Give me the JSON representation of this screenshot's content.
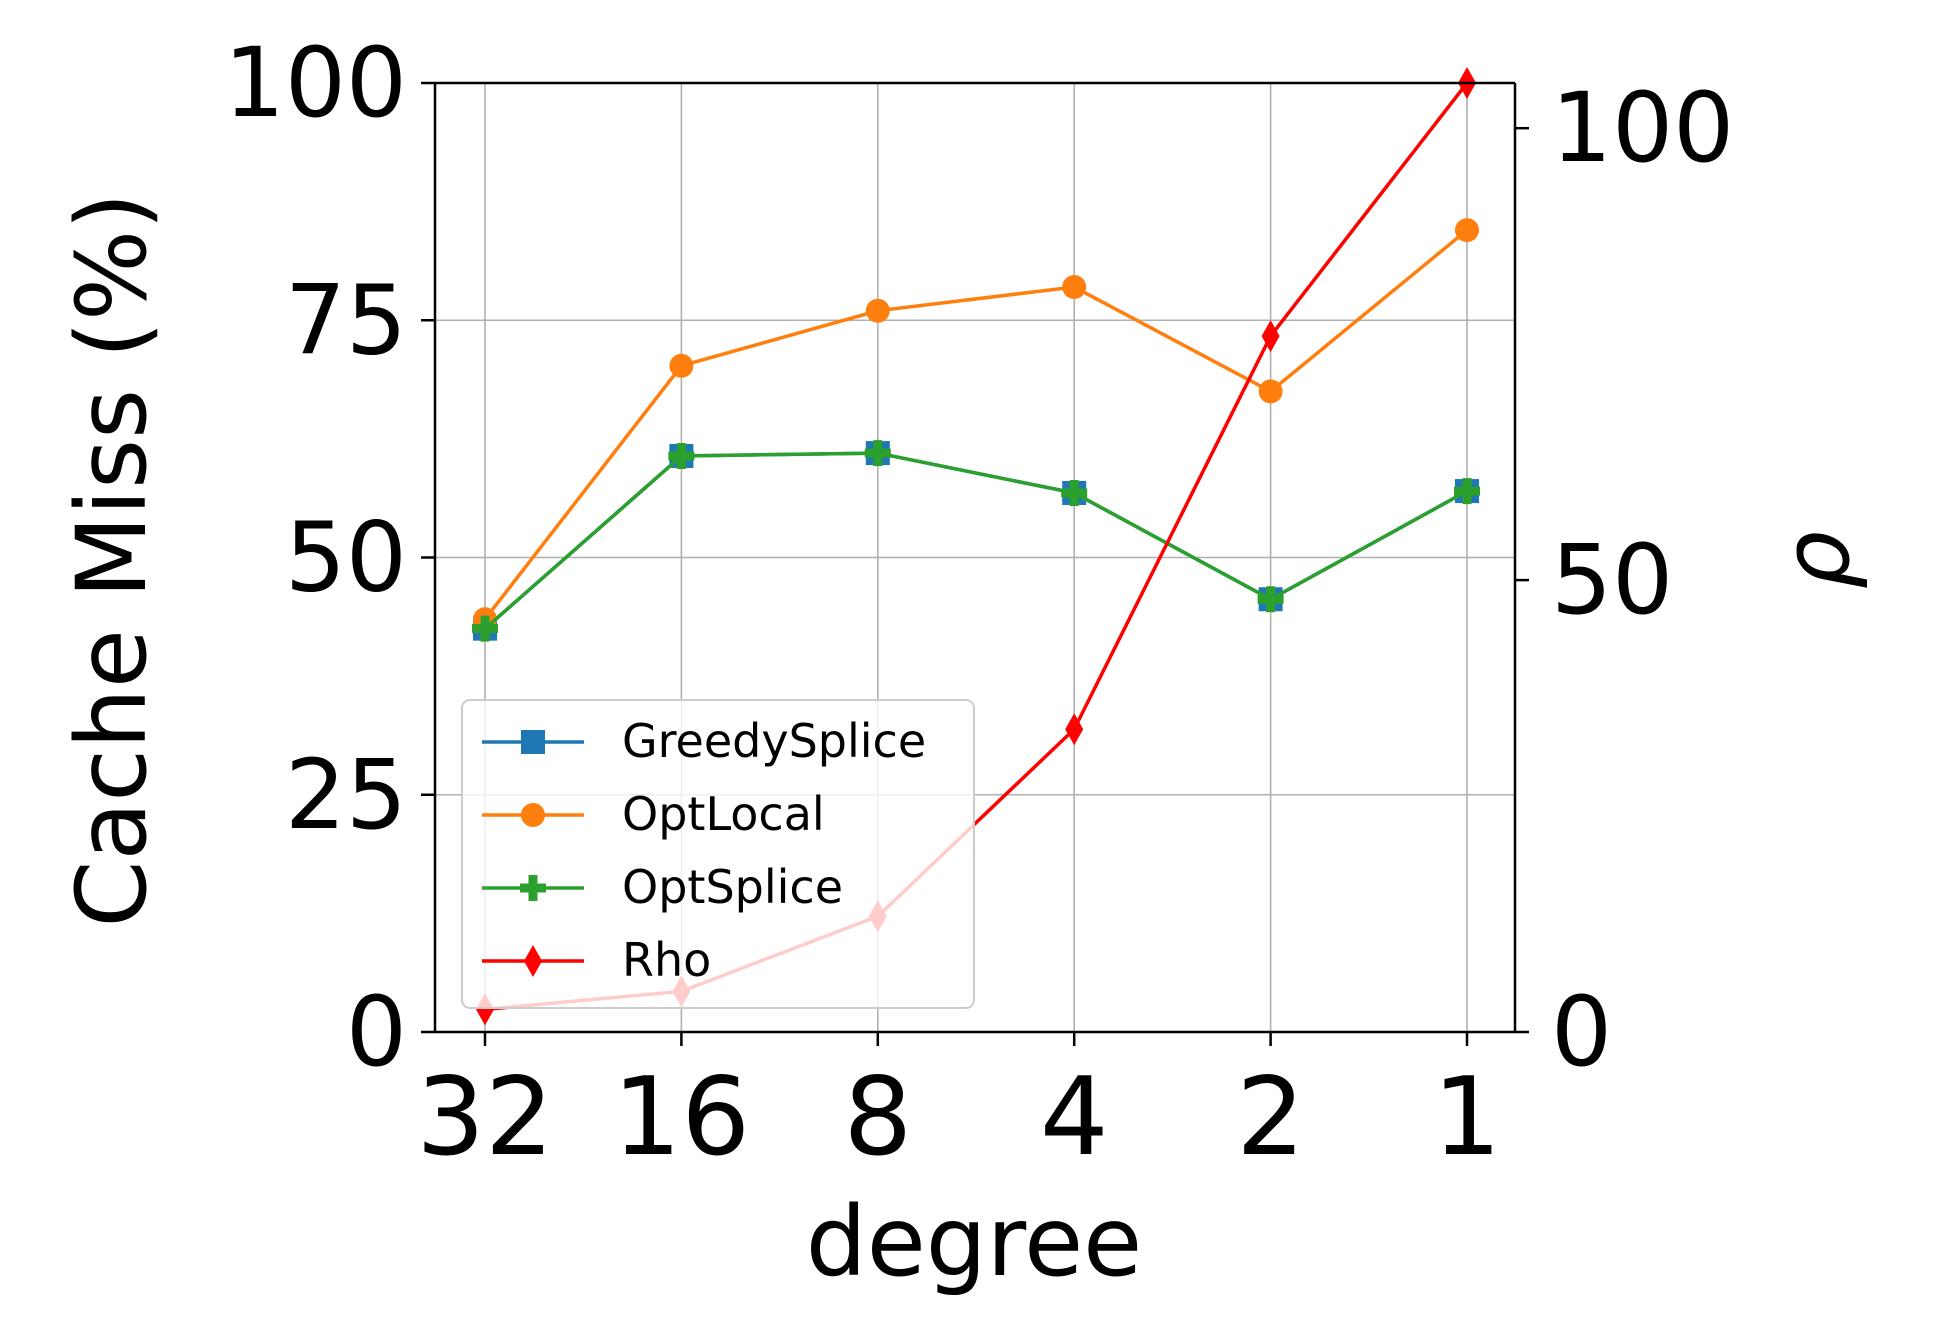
{
  "chart_data": {
    "type": "line",
    "xlabel": "degree",
    "ylabel": "Cache Miss (%)",
    "y2label": "ρ",
    "categories": [
      "32",
      "16",
      "8",
      "4",
      "2",
      "1"
    ],
    "ylim": [
      0,
      100
    ],
    "yticks": [
      0,
      25,
      50,
      75,
      100
    ],
    "y2lim": [
      0,
      105
    ],
    "y2ticks": [
      0,
      50,
      100
    ],
    "grid": true,
    "legend_position": "lower-left",
    "series": [
      {
        "name": "GreedySplice",
        "axis": "left",
        "color": "#1f77b4",
        "marker": "square",
        "values": [
          42.5,
          60.7,
          61.0,
          56.8,
          45.6,
          57.0
        ]
      },
      {
        "name": "OptLocal",
        "axis": "left",
        "color": "#ff7f0e",
        "marker": "circle",
        "values": [
          43.5,
          70.2,
          76.0,
          78.5,
          67.5,
          84.5
        ]
      },
      {
        "name": "OptSplice",
        "axis": "left",
        "color": "#2ca02c",
        "marker": "plus",
        "values": [
          42.5,
          60.7,
          61.0,
          56.8,
          45.6,
          57.0
        ]
      },
      {
        "name": "Rho",
        "axis": "right",
        "color": "#ff0000",
        "marker": "thin_diamond",
        "values": [
          2.5,
          4.5,
          12.8,
          33.5,
          77.0,
          105.0
        ]
      }
    ]
  }
}
